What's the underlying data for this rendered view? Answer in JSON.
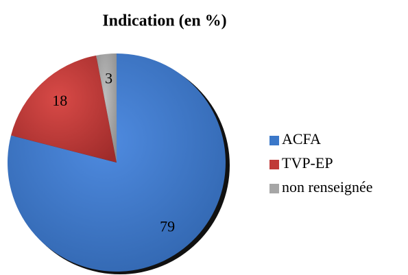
{
  "chart_data": {
    "type": "pie",
    "title": "Indication (en %)",
    "categories": [
      "ACFA",
      "TVP-EP",
      "non renseignée"
    ],
    "values": [
      79,
      18,
      3
    ],
    "colors": [
      "#3b78c9",
      "#c03a38",
      "#a6a6a6"
    ],
    "legend": "right"
  }
}
